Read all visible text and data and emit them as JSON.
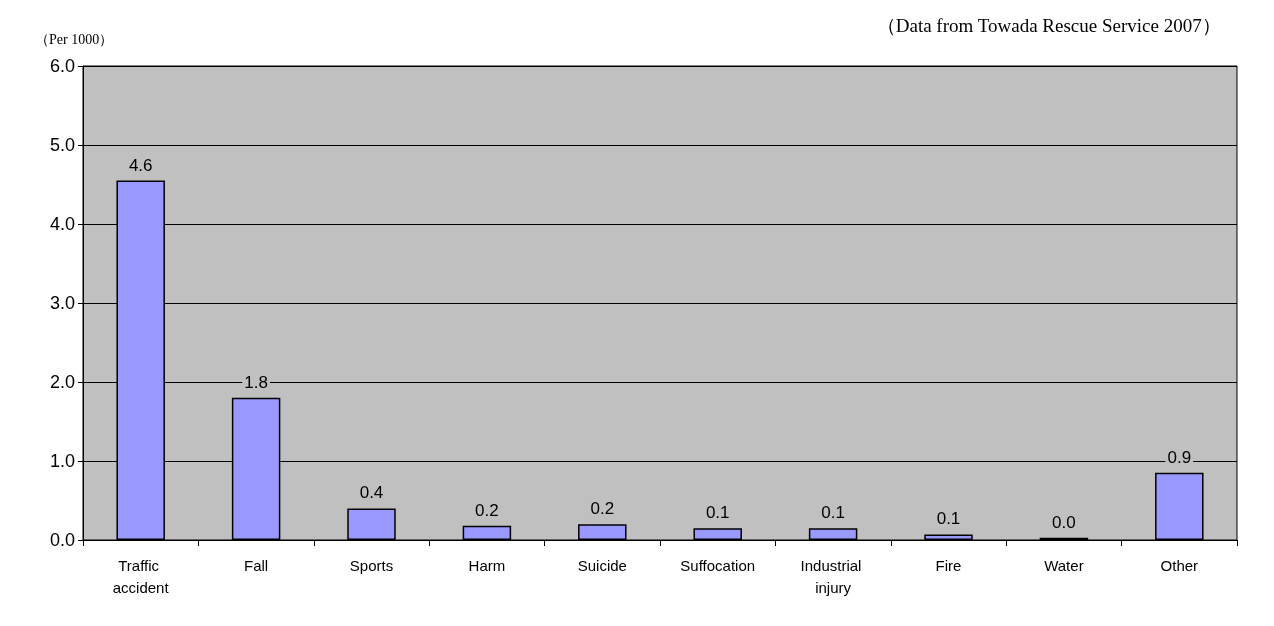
{
  "chart_data": {
    "type": "bar",
    "ylabel": "（Per 1000）",
    "annotations": [
      "（Data from Towada Rescue Service 2007）"
    ],
    "categories": [
      "Traffic accident",
      "Fall",
      "Sports",
      "Harm",
      "Suicide",
      "Suffocation",
      "Industrial injury",
      "Fire",
      "Water",
      "Other"
    ],
    "values": [
      4.55,
      1.8,
      0.4,
      0.18,
      0.2,
      0.15,
      0.15,
      0.07,
      0.03,
      0.85
    ],
    "value_labels": [
      "4.6",
      "1.8",
      "0.4",
      "0.2",
      "0.2",
      "0.1",
      "0.1",
      "0.1",
      "0.0",
      "0.9"
    ],
    "color": "#9999ff",
    "ylim": [
      0,
      6
    ],
    "yticks": [
      {
        "value": 0,
        "label": "0.0"
      },
      {
        "value": 1,
        "label": "1.0"
      },
      {
        "value": 2,
        "label": "2.0"
      },
      {
        "value": 3,
        "label": "3.0"
      },
      {
        "value": 4,
        "label": "4.0"
      },
      {
        "value": 5,
        "label": "5.0"
      },
      {
        "value": 6,
        "label": "6.0"
      }
    ],
    "grid": "y"
  }
}
